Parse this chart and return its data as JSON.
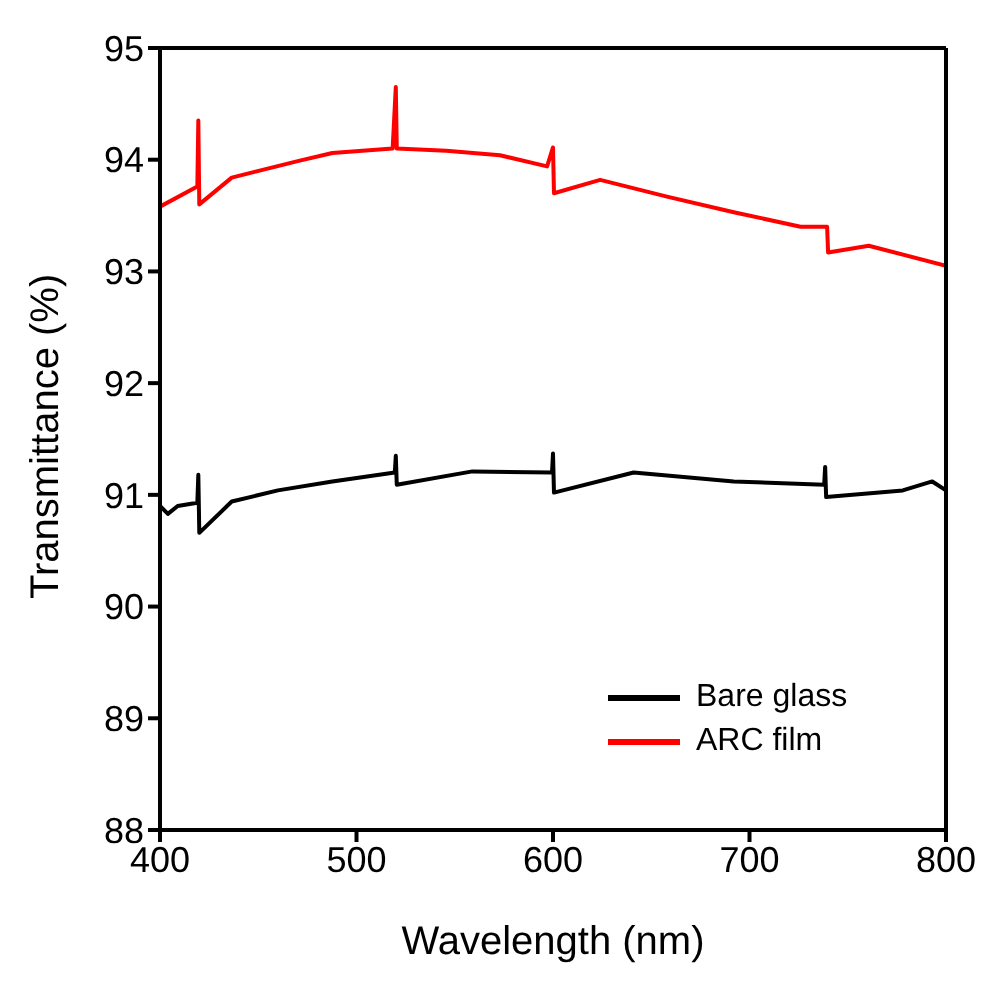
{
  "chart_data": {
    "type": "line",
    "xlabel": "Wavelength (nm)",
    "ylabel": "Transmittance (%)",
    "xlim": [
      400,
      800
    ],
    "xticks": [
      400,
      500,
      600,
      700,
      800
    ],
    "ylim": [
      88,
      95
    ],
    "yticks": [
      88,
      89,
      90,
      91,
      92,
      93,
      94,
      95
    ],
    "legend": "bottom right",
    "marker": "none",
    "line_style": "solid",
    "series": [
      {
        "name": "Bare glass",
        "color": "#000000",
        "x": [
          400,
          404,
          409,
          419,
          419.5,
          420,
          436.5,
          460,
          487.7,
          519.5,
          520,
          520.5,
          559,
          599.5,
          600,
          600.5,
          641,
          692,
          738,
          738.5,
          739,
          778,
          793,
          800
        ],
        "values": [
          90.9,
          90.83,
          90.9,
          90.93,
          91.18,
          90.66,
          90.94,
          91.04,
          91.12,
          91.2,
          91.35,
          91.09,
          91.21,
          91.2,
          91.37,
          91.02,
          91.2,
          91.12,
          91.09,
          91.25,
          90.98,
          91.04,
          91.12,
          91.04
        ]
      },
      {
        "name": "ARC film",
        "color": "#ff0000",
        "x": [
          400,
          419,
          419.5,
          420,
          436.5,
          470.6,
          487.7,
          518.4,
          520,
          520.5,
          545.7,
          573,
          597,
          600,
          600.5,
          624,
          658,
          692,
          726,
          739.5,
          740,
          760.7,
          800
        ],
        "values": [
          93.58,
          93.76,
          94.35,
          93.6,
          93.84,
          93.99,
          94.06,
          94.1,
          94.65,
          94.1,
          94.08,
          94.04,
          93.94,
          94.11,
          93.7,
          93.82,
          93.67,
          93.53,
          93.4,
          93.4,
          93.17,
          93.23,
          93.05
        ]
      }
    ]
  }
}
